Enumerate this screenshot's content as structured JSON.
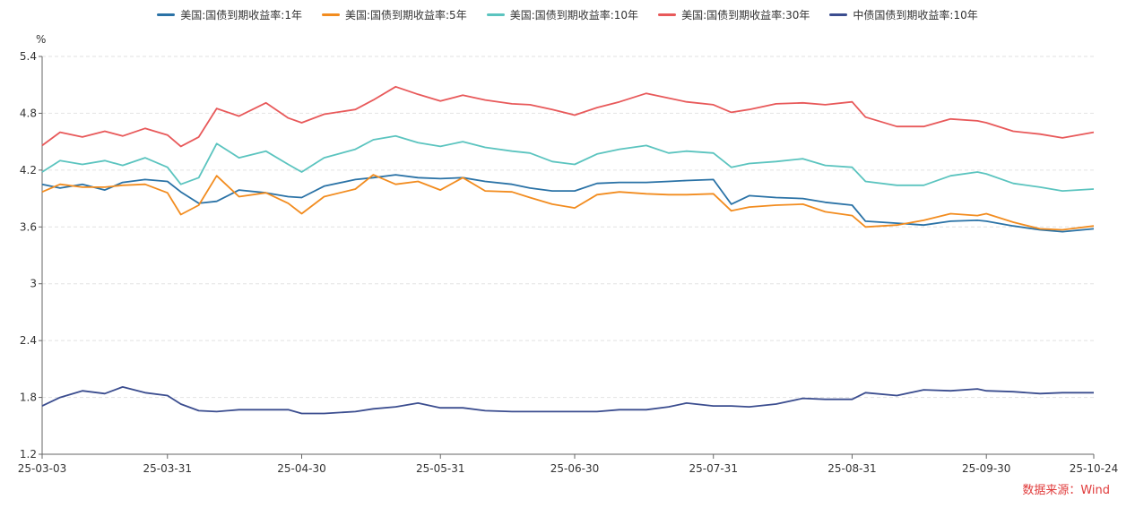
{
  "chart_data": {
    "type": "line",
    "y_unit": "%",
    "ylim": [
      1.2,
      5.4
    ],
    "yticks": [
      "5.4",
      "4.8",
      "4.2",
      "3.6",
      "3",
      "2.4",
      "1.8",
      "1.2"
    ],
    "xlim": [
      "2025-03-03",
      "2025-10-24"
    ],
    "xticks": [
      {
        "date": "2025-03-03",
        "label": "25-03-03"
      },
      {
        "date": "2025-03-31",
        "label": "25-03-31"
      },
      {
        "date": "2025-04-30",
        "label": "25-04-30"
      },
      {
        "date": "2025-05-31",
        "label": "25-05-31"
      },
      {
        "date": "2025-06-30",
        "label": "25-06-30"
      },
      {
        "date": "2025-07-31",
        "label": "25-07-31"
      },
      {
        "date": "2025-08-31",
        "label": "25-08-31"
      },
      {
        "date": "2025-09-30",
        "label": "25-09-30"
      },
      {
        "date": "2025-10-24",
        "label": "25-10-24"
      }
    ],
    "grid": true,
    "legend_position": "top",
    "series": [
      {
        "name": "美国:国债到期收益率:1年",
        "color": "#2a72a6",
        "points": [
          [
            "2025-03-03",
            4.05
          ],
          [
            "2025-03-07",
            4.01
          ],
          [
            "2025-03-12",
            4.05
          ],
          [
            "2025-03-17",
            3.99
          ],
          [
            "2025-03-21",
            4.07
          ],
          [
            "2025-03-26",
            4.1
          ],
          [
            "2025-03-31",
            4.08
          ],
          [
            "2025-04-03",
            3.97
          ],
          [
            "2025-04-07",
            3.85
          ],
          [
            "2025-04-11",
            3.87
          ],
          [
            "2025-04-16",
            3.99
          ],
          [
            "2025-04-22",
            3.96
          ],
          [
            "2025-04-27",
            3.92
          ],
          [
            "2025-04-30",
            3.91
          ],
          [
            "2025-05-05",
            4.03
          ],
          [
            "2025-05-12",
            4.1
          ],
          [
            "2025-05-16",
            4.12
          ],
          [
            "2025-05-21",
            4.15
          ],
          [
            "2025-05-26",
            4.12
          ],
          [
            "2025-05-31",
            4.11
          ],
          [
            "2025-06-05",
            4.12
          ],
          [
            "2025-06-10",
            4.08
          ],
          [
            "2025-06-16",
            4.05
          ],
          [
            "2025-06-20",
            4.01
          ],
          [
            "2025-06-25",
            3.98
          ],
          [
            "2025-06-30",
            3.98
          ],
          [
            "2025-07-05",
            4.06
          ],
          [
            "2025-07-10",
            4.07
          ],
          [
            "2025-07-16",
            4.07
          ],
          [
            "2025-07-21",
            4.08
          ],
          [
            "2025-07-25",
            4.09
          ],
          [
            "2025-07-31",
            4.1
          ],
          [
            "2025-08-04",
            3.84
          ],
          [
            "2025-08-08",
            3.93
          ],
          [
            "2025-08-14",
            3.91
          ],
          [
            "2025-08-20",
            3.9
          ],
          [
            "2025-08-25",
            3.86
          ],
          [
            "2025-08-31",
            3.83
          ],
          [
            "2025-09-03",
            3.66
          ],
          [
            "2025-09-10",
            3.64
          ],
          [
            "2025-09-16",
            3.62
          ],
          [
            "2025-09-22",
            3.66
          ],
          [
            "2025-09-28",
            3.67
          ],
          [
            "2025-09-30",
            3.66
          ],
          [
            "2025-10-06",
            3.61
          ],
          [
            "2025-10-12",
            3.57
          ],
          [
            "2025-10-17",
            3.55
          ],
          [
            "2025-10-24",
            3.58
          ]
        ]
      },
      {
        "name": "美国:国债到期收益率:5年",
        "color": "#f28c1f",
        "points": [
          [
            "2025-03-03",
            3.97
          ],
          [
            "2025-03-07",
            4.05
          ],
          [
            "2025-03-12",
            4.02
          ],
          [
            "2025-03-17",
            4.02
          ],
          [
            "2025-03-21",
            4.04
          ],
          [
            "2025-03-26",
            4.05
          ],
          [
            "2025-03-31",
            3.96
          ],
          [
            "2025-04-03",
            3.73
          ],
          [
            "2025-04-07",
            3.83
          ],
          [
            "2025-04-11",
            4.14
          ],
          [
            "2025-04-16",
            3.92
          ],
          [
            "2025-04-22",
            3.96
          ],
          [
            "2025-04-27",
            3.85
          ],
          [
            "2025-04-30",
            3.74
          ],
          [
            "2025-05-05",
            3.92
          ],
          [
            "2025-05-12",
            4.0
          ],
          [
            "2025-05-16",
            4.15
          ],
          [
            "2025-05-21",
            4.05
          ],
          [
            "2025-05-26",
            4.08
          ],
          [
            "2025-05-31",
            3.99
          ],
          [
            "2025-06-05",
            4.12
          ],
          [
            "2025-06-10",
            3.98
          ],
          [
            "2025-06-16",
            3.97
          ],
          [
            "2025-06-20",
            3.91
          ],
          [
            "2025-06-25",
            3.84
          ],
          [
            "2025-06-30",
            3.8
          ],
          [
            "2025-07-05",
            3.94
          ],
          [
            "2025-07-10",
            3.97
          ],
          [
            "2025-07-16",
            3.95
          ],
          [
            "2025-07-21",
            3.94
          ],
          [
            "2025-07-25",
            3.94
          ],
          [
            "2025-07-31",
            3.95
          ],
          [
            "2025-08-04",
            3.77
          ],
          [
            "2025-08-08",
            3.81
          ],
          [
            "2025-08-14",
            3.83
          ],
          [
            "2025-08-20",
            3.84
          ],
          [
            "2025-08-25",
            3.76
          ],
          [
            "2025-08-31",
            3.72
          ],
          [
            "2025-09-03",
            3.6
          ],
          [
            "2025-09-10",
            3.62
          ],
          [
            "2025-09-16",
            3.67
          ],
          [
            "2025-09-22",
            3.74
          ],
          [
            "2025-09-28",
            3.72
          ],
          [
            "2025-09-30",
            3.74
          ],
          [
            "2025-10-06",
            3.65
          ],
          [
            "2025-10-12",
            3.58
          ],
          [
            "2025-10-17",
            3.57
          ],
          [
            "2025-10-24",
            3.61
          ]
        ]
      },
      {
        "name": "美国:国债到期收益率:10年",
        "color": "#5bc4bf",
        "points": [
          [
            "2025-03-03",
            4.18
          ],
          [
            "2025-03-07",
            4.3
          ],
          [
            "2025-03-12",
            4.26
          ],
          [
            "2025-03-17",
            4.3
          ],
          [
            "2025-03-21",
            4.25
          ],
          [
            "2025-03-26",
            4.33
          ],
          [
            "2025-03-31",
            4.23
          ],
          [
            "2025-04-03",
            4.05
          ],
          [
            "2025-04-07",
            4.12
          ],
          [
            "2025-04-11",
            4.48
          ],
          [
            "2025-04-16",
            4.33
          ],
          [
            "2025-04-22",
            4.4
          ],
          [
            "2025-04-27",
            4.26
          ],
          [
            "2025-04-30",
            4.18
          ],
          [
            "2025-05-05",
            4.33
          ],
          [
            "2025-05-12",
            4.42
          ],
          [
            "2025-05-16",
            4.52
          ],
          [
            "2025-05-21",
            4.56
          ],
          [
            "2025-05-26",
            4.49
          ],
          [
            "2025-05-31",
            4.45
          ],
          [
            "2025-06-05",
            4.5
          ],
          [
            "2025-06-10",
            4.44
          ],
          [
            "2025-06-16",
            4.4
          ],
          [
            "2025-06-20",
            4.38
          ],
          [
            "2025-06-25",
            4.29
          ],
          [
            "2025-06-30",
            4.26
          ],
          [
            "2025-07-05",
            4.37
          ],
          [
            "2025-07-10",
            4.42
          ],
          [
            "2025-07-16",
            4.46
          ],
          [
            "2025-07-21",
            4.38
          ],
          [
            "2025-07-25",
            4.4
          ],
          [
            "2025-07-31",
            4.38
          ],
          [
            "2025-08-04",
            4.23
          ],
          [
            "2025-08-08",
            4.27
          ],
          [
            "2025-08-14",
            4.29
          ],
          [
            "2025-08-20",
            4.32
          ],
          [
            "2025-08-25",
            4.25
          ],
          [
            "2025-08-31",
            4.23
          ],
          [
            "2025-09-03",
            4.08
          ],
          [
            "2025-09-10",
            4.04
          ],
          [
            "2025-09-16",
            4.04
          ],
          [
            "2025-09-22",
            4.14
          ],
          [
            "2025-09-28",
            4.18
          ],
          [
            "2025-09-30",
            4.16
          ],
          [
            "2025-10-06",
            4.06
          ],
          [
            "2025-10-12",
            4.02
          ],
          [
            "2025-10-17",
            3.98
          ],
          [
            "2025-10-24",
            4.0
          ]
        ]
      },
      {
        "name": "美国:国债到期收益率:30年",
        "color": "#e8595a",
        "points": [
          [
            "2025-03-03",
            4.46
          ],
          [
            "2025-03-07",
            4.6
          ],
          [
            "2025-03-12",
            4.55
          ],
          [
            "2025-03-17",
            4.61
          ],
          [
            "2025-03-21",
            4.56
          ],
          [
            "2025-03-26",
            4.64
          ],
          [
            "2025-03-31",
            4.57
          ],
          [
            "2025-04-03",
            4.45
          ],
          [
            "2025-04-07",
            4.55
          ],
          [
            "2025-04-11",
            4.85
          ],
          [
            "2025-04-16",
            4.77
          ],
          [
            "2025-04-22",
            4.91
          ],
          [
            "2025-04-27",
            4.75
          ],
          [
            "2025-04-30",
            4.7
          ],
          [
            "2025-05-05",
            4.79
          ],
          [
            "2025-05-12",
            4.84
          ],
          [
            "2025-05-16",
            4.94
          ],
          [
            "2025-05-21",
            5.08
          ],
          [
            "2025-05-26",
            5.0
          ],
          [
            "2025-05-31",
            4.93
          ],
          [
            "2025-06-05",
            4.99
          ],
          [
            "2025-06-10",
            4.94
          ],
          [
            "2025-06-16",
            4.9
          ],
          [
            "2025-06-20",
            4.89
          ],
          [
            "2025-06-25",
            4.84
          ],
          [
            "2025-06-30",
            4.78
          ],
          [
            "2025-07-05",
            4.86
          ],
          [
            "2025-07-10",
            4.92
          ],
          [
            "2025-07-16",
            5.01
          ],
          [
            "2025-07-21",
            4.96
          ],
          [
            "2025-07-25",
            4.92
          ],
          [
            "2025-07-31",
            4.89
          ],
          [
            "2025-08-04",
            4.81
          ],
          [
            "2025-08-08",
            4.84
          ],
          [
            "2025-08-14",
            4.9
          ],
          [
            "2025-08-20",
            4.91
          ],
          [
            "2025-08-25",
            4.89
          ],
          [
            "2025-08-31",
            4.92
          ],
          [
            "2025-09-03",
            4.76
          ],
          [
            "2025-09-10",
            4.66
          ],
          [
            "2025-09-16",
            4.66
          ],
          [
            "2025-09-22",
            4.74
          ],
          [
            "2025-09-28",
            4.72
          ],
          [
            "2025-09-30",
            4.7
          ],
          [
            "2025-10-06",
            4.61
          ],
          [
            "2025-10-12",
            4.58
          ],
          [
            "2025-10-17",
            4.54
          ],
          [
            "2025-10-24",
            4.6
          ]
        ]
      },
      {
        "name": "中债国债到期收益率:10年",
        "color": "#3b4d8f",
        "points": [
          [
            "2025-03-03",
            1.71
          ],
          [
            "2025-03-07",
            1.8
          ],
          [
            "2025-03-12",
            1.87
          ],
          [
            "2025-03-17",
            1.84
          ],
          [
            "2025-03-21",
            1.91
          ],
          [
            "2025-03-26",
            1.85
          ],
          [
            "2025-03-31",
            1.82
          ],
          [
            "2025-04-03",
            1.73
          ],
          [
            "2025-04-07",
            1.66
          ],
          [
            "2025-04-11",
            1.65
          ],
          [
            "2025-04-16",
            1.67
          ],
          [
            "2025-04-22",
            1.67
          ],
          [
            "2025-04-27",
            1.67
          ],
          [
            "2025-04-30",
            1.63
          ],
          [
            "2025-05-05",
            1.63
          ],
          [
            "2025-05-12",
            1.65
          ],
          [
            "2025-05-16",
            1.68
          ],
          [
            "2025-05-21",
            1.7
          ],
          [
            "2025-05-26",
            1.74
          ],
          [
            "2025-05-31",
            1.69
          ],
          [
            "2025-06-05",
            1.69
          ],
          [
            "2025-06-10",
            1.66
          ],
          [
            "2025-06-16",
            1.65
          ],
          [
            "2025-06-20",
            1.65
          ],
          [
            "2025-06-25",
            1.65
          ],
          [
            "2025-06-30",
            1.65
          ],
          [
            "2025-07-05",
            1.65
          ],
          [
            "2025-07-10",
            1.67
          ],
          [
            "2025-07-16",
            1.67
          ],
          [
            "2025-07-21",
            1.7
          ],
          [
            "2025-07-25",
            1.74
          ],
          [
            "2025-07-31",
            1.71
          ],
          [
            "2025-08-04",
            1.71
          ],
          [
            "2025-08-08",
            1.7
          ],
          [
            "2025-08-14",
            1.73
          ],
          [
            "2025-08-20",
            1.79
          ],
          [
            "2025-08-25",
            1.78
          ],
          [
            "2025-08-31",
            1.78
          ],
          [
            "2025-09-03",
            1.85
          ],
          [
            "2025-09-10",
            1.82
          ],
          [
            "2025-09-16",
            1.88
          ],
          [
            "2025-09-22",
            1.87
          ],
          [
            "2025-09-28",
            1.89
          ],
          [
            "2025-09-30",
            1.87
          ],
          [
            "2025-10-06",
            1.86
          ],
          [
            "2025-10-12",
            1.84
          ],
          [
            "2025-10-17",
            1.85
          ],
          [
            "2025-10-24",
            1.85
          ]
        ]
      }
    ]
  },
  "source_note": "数据来源：Wind"
}
